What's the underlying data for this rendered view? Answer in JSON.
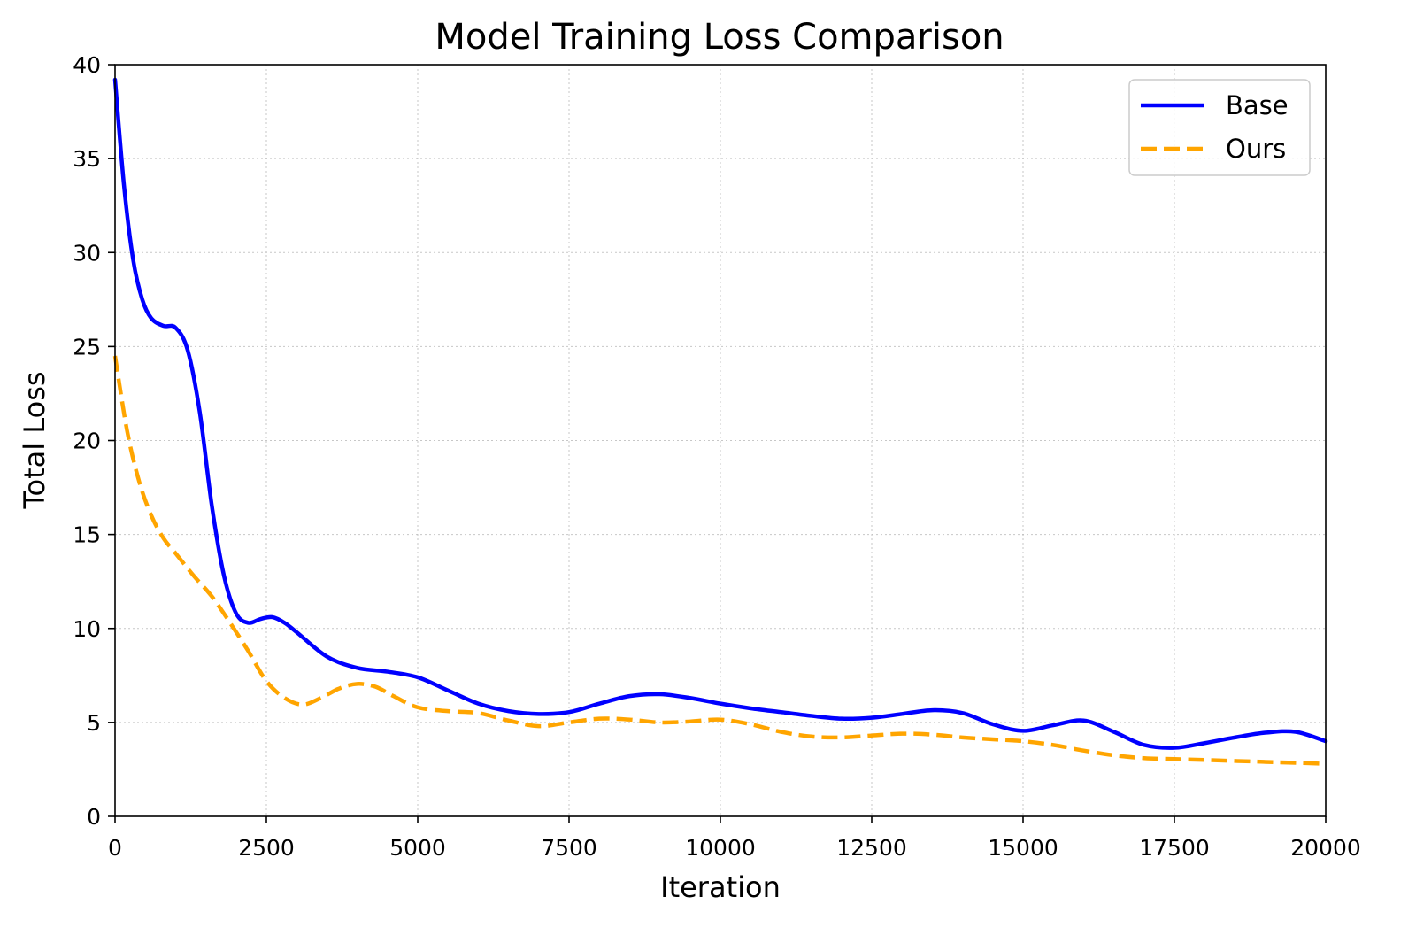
{
  "chart_data": {
    "type": "line",
    "title": "Model Training Loss Comparison",
    "xlabel": "Iteration",
    "ylabel": "Total Loss",
    "xlim": [
      0,
      20000
    ],
    "ylim": [
      0,
      40
    ],
    "xticks": [
      0,
      2500,
      5000,
      7500,
      10000,
      12500,
      15000,
      17500,
      20000
    ],
    "yticks": [
      0,
      5,
      10,
      15,
      20,
      25,
      30,
      35,
      40
    ],
    "grid": true,
    "legend_position": "top-right",
    "series": [
      {
        "name": "Base",
        "color": "#0000ff",
        "style": "solid",
        "x": [
          0,
          150,
          300,
          450,
          600,
          800,
          1000,
          1200,
          1400,
          1600,
          1800,
          2000,
          2200,
          2400,
          2600,
          2800,
          3000,
          3500,
          4000,
          4500,
          5000,
          5500,
          6000,
          6500,
          7000,
          7500,
          8000,
          8500,
          9000,
          9500,
          10000,
          10500,
          11000,
          11500,
          12000,
          12500,
          13000,
          13500,
          14000,
          14500,
          15000,
          15500,
          16000,
          16500,
          17000,
          17500,
          18000,
          18500,
          19000,
          19500,
          20000
        ],
        "values": [
          39.2,
          33.5,
          29.6,
          27.5,
          26.5,
          26.1,
          26.0,
          24.8,
          21.5,
          16.5,
          12.8,
          10.8,
          10.3,
          10.5,
          10.6,
          10.3,
          9.8,
          8.5,
          7.9,
          7.7,
          7.4,
          6.7,
          6.0,
          5.6,
          5.45,
          5.55,
          6.0,
          6.4,
          6.5,
          6.3,
          6.0,
          5.75,
          5.55,
          5.35,
          5.2,
          5.25,
          5.45,
          5.65,
          5.5,
          4.9,
          4.55,
          4.85,
          5.1,
          4.5,
          3.8,
          3.65,
          3.9,
          4.2,
          4.45,
          4.5,
          4.0
        ]
      },
      {
        "name": "Ours",
        "color": "#ffa500",
        "style": "dashed",
        "x": [
          0,
          200,
          400,
          600,
          800,
          1000,
          1300,
          1600,
          1900,
          2200,
          2500,
          2800,
          3100,
          3400,
          3700,
          4000,
          4300,
          4600,
          5000,
          5500,
          6000,
          6500,
          7000,
          7500,
          8000,
          8500,
          9000,
          9500,
          10000,
          10500,
          11000,
          11500,
          12000,
          12500,
          13000,
          13500,
          14000,
          14500,
          15000,
          15500,
          16000,
          16500,
          17000,
          17500,
          18000,
          18500,
          19000,
          19500,
          20000
        ],
        "values": [
          24.5,
          20.5,
          17.8,
          16.0,
          14.8,
          14.0,
          12.8,
          11.7,
          10.3,
          8.8,
          7.2,
          6.3,
          5.95,
          6.3,
          6.8,
          7.05,
          6.9,
          6.4,
          5.8,
          5.6,
          5.5,
          5.1,
          4.8,
          5.0,
          5.2,
          5.15,
          5.0,
          5.05,
          5.15,
          4.9,
          4.5,
          4.25,
          4.2,
          4.3,
          4.4,
          4.35,
          4.2,
          4.1,
          4.0,
          3.8,
          3.5,
          3.25,
          3.1,
          3.05,
          3.0,
          2.95,
          2.9,
          2.85,
          2.8
        ]
      }
    ]
  }
}
